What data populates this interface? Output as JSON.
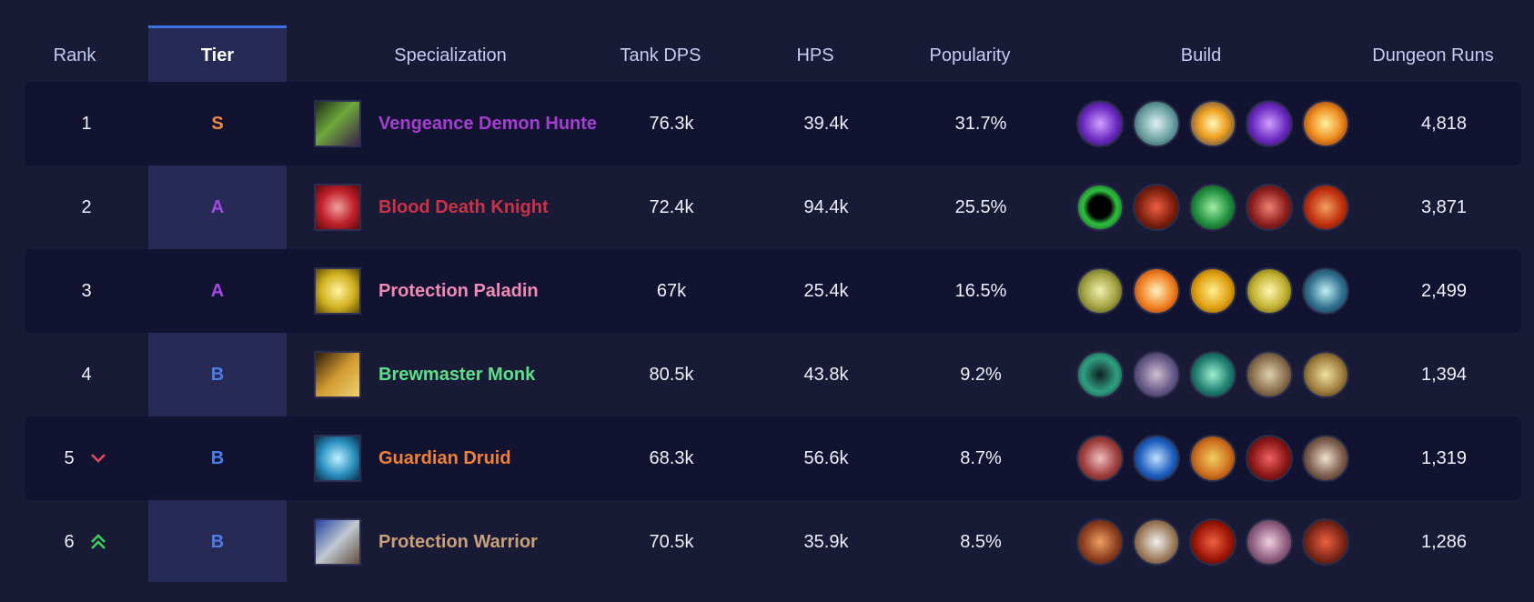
{
  "headers": {
    "rank": "Rank",
    "tier": "Tier",
    "spec": "Specialization",
    "dps": "Tank DPS",
    "hps": "HPS",
    "popularity": "Popularity",
    "build": "Build",
    "runs": "Dungeon Runs"
  },
  "colors": {
    "tier_S": "#f08a3c",
    "tier_A": "#a347e6",
    "tier_B": "#4e7de8",
    "trend_down": "#e04a5a",
    "trend_up": "#3ccf5a"
  },
  "rows": [
    {
      "rank": "1",
      "tier": "S",
      "trend": "",
      "spec": "Vengeance Demon Hunter",
      "spec_color": "#a33fcf",
      "dps": "76.3k",
      "hps": "39.4k",
      "popularity": "31.7%",
      "runs": "4,818",
      "spec_icon": "vengeance-demon-hunter-icon",
      "build": [
        "soul-sphere-icon",
        "skull-mask-icon",
        "spell-burst-icon",
        "soul-sphere-icon",
        "fire-claw-icon"
      ]
    },
    {
      "rank": "2",
      "tier": "A",
      "trend": "",
      "spec": "Blood Death Knight",
      "spec_color": "#c93247",
      "dps": "72.4k",
      "hps": "94.4k",
      "popularity": "25.5%",
      "runs": "3,871",
      "spec_icon": "blood-death-knight-icon",
      "build": [
        "green-portal-icon",
        "blood-skull-icon",
        "green-ghoul-icon",
        "blood-blade-icon",
        "blood-rune-icon"
      ]
    },
    {
      "rank": "3",
      "tier": "A",
      "trend": "",
      "spec": "Protection Paladin",
      "spec_color": "#f08ab7",
      "dps": "67k",
      "hps": "25.4k",
      "popularity": "16.5%",
      "runs": "2,499",
      "spec_icon": "protection-paladin-icon",
      "build": [
        "holy-lion-icon",
        "holy-fire-icon",
        "holy-guardian-icon",
        "golden-helm-icon",
        "frost-dragon-icon"
      ]
    },
    {
      "rank": "4",
      "tier": "B",
      "trend": "",
      "spec": "Brewmaster Monk",
      "spec_color": "#5ee08a",
      "dps": "80.5k",
      "hps": "43.8k",
      "popularity": "9.2%",
      "runs": "1,394",
      "spec_icon": "brewmaster-monk-icon",
      "build": [
        "jade-swirl-icon",
        "bandaged-fist-icon",
        "jade-serpent-icon",
        "stone-ox-icon",
        "star-monk-icon"
      ]
    },
    {
      "rank": "5",
      "tier": "B",
      "trend": "down",
      "spec": "Guardian Druid",
      "spec_color": "#f0803a",
      "dps": "68.3k",
      "hps": "56.6k",
      "popularity": "8.7%",
      "runs": "1,319",
      "spec_icon": "guardian-druid-icon",
      "build": [
        "claw-rip-icon",
        "moonfire-icon",
        "bear-totem-icon",
        "red-bear-icon",
        "bear-claw-icon"
      ]
    },
    {
      "rank": "6",
      "tier": "B",
      "trend": "up",
      "spec": "Protection Warrior",
      "spec_color": "#c8a07a",
      "dps": "70.5k",
      "hps": "35.9k",
      "popularity": "8.5%",
      "runs": "1,286",
      "spec_icon": "protection-warrior-icon",
      "build": [
        "war-shout-icon",
        "shield-wall-icon",
        "red-moon-icon",
        "dark-elf-icon",
        "lava-demon-icon"
      ]
    }
  ]
}
